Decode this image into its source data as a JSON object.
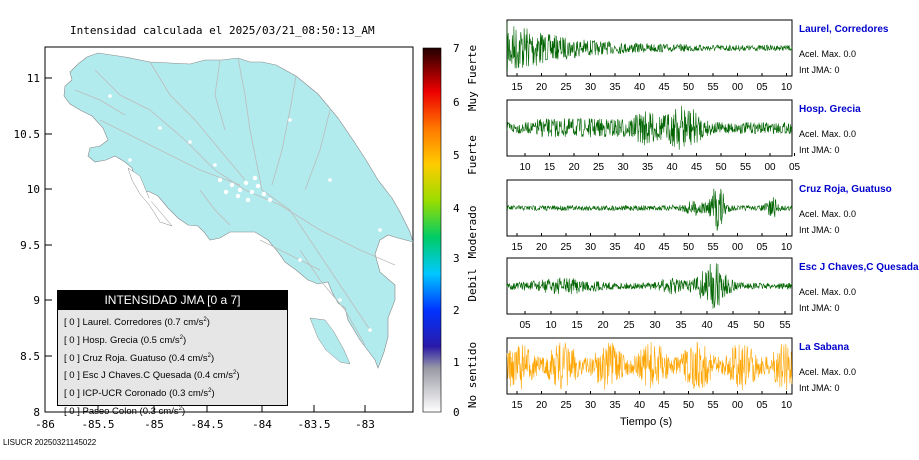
{
  "map": {
    "title": "Intensidad calculada el 2025/03/21_08:50:13_AM",
    "x_ticks": [
      "-86",
      "-85.5",
      "-85",
      "-84.5",
      "-84",
      "-83.5",
      "-83"
    ],
    "y_ticks": [
      "11",
      "10.5",
      "10",
      "9.5",
      "9",
      "8.5",
      "8"
    ],
    "land_color": "#b2ebee",
    "legend": {
      "title": "INTENSIDAD JMA [0 a 7]",
      "items": [
        {
          "bracket": "[ 0 ]",
          "name": "Laurel. Corredores",
          "value": "(0.7 cm/s",
          "exp": "2",
          "close": ")"
        },
        {
          "bracket": "[ 0 ]",
          "name": "Hosp. Grecia",
          "value": "(0.5 cm/s",
          "exp": "2",
          "close": ")"
        },
        {
          "bracket": "[ 0 ]",
          "name": "Cruz Roja. Guatuso",
          "value": "(0.4 cm/s",
          "exp": "2",
          "close": ")"
        },
        {
          "bracket": "[ 0 ]",
          "name": "Esc J Chaves.C Quesada",
          "value": "(0.4 cm/s",
          "exp": "2",
          "close": ")"
        },
        {
          "bracket": "[ 0 ]",
          "name": "ICP-UCR Coronado",
          "value": "(0.3 cm/s",
          "exp": "2",
          "close": ")"
        },
        {
          "bracket": "[ 0 ]",
          "name": "Paseo Colon",
          "value": "(0.3 cm/s",
          "exp": "2",
          "close": ")"
        }
      ]
    },
    "footer": "LISUCR 20250321145022"
  },
  "scale": {
    "numbers": [
      "7",
      "6",
      "5",
      "4",
      "3",
      "2",
      "1",
      "0"
    ],
    "labels": [
      "Muy Fuerte",
      "Fuerte",
      "Moderado",
      "Debil",
      "No sentido"
    ]
  },
  "waveforms": {
    "time_label": "Tiempo (s)",
    "panels": [
      {
        "name": "Laurel, Corredores",
        "acel": "Acel. Max. 0.0",
        "int": "Int JMA: 0",
        "color": "#006400",
        "ticks": [
          "15",
          "20",
          "25",
          "30",
          "35",
          "40",
          "45",
          "50",
          "55",
          "00",
          "05",
          "10"
        ]
      },
      {
        "name": "Hosp. Grecia",
        "acel": "Acel. Max. 0.0",
        "int": "Int JMA: 0",
        "color": "#006400",
        "ticks": [
          "10",
          "15",
          "20",
          "25",
          "30",
          "35",
          "40",
          "45",
          "50",
          "55",
          "00",
          "05"
        ]
      },
      {
        "name": "Cruz Roja, Guatuso",
        "acel": "Acel. Max. 0.0",
        "int": "Int JMA: 0",
        "color": "#006400",
        "ticks": [
          "15",
          "20",
          "25",
          "30",
          "35",
          "40",
          "45",
          "50",
          "55",
          "00",
          "05",
          "10"
        ]
      },
      {
        "name": "Esc J Chaves,C Quesada",
        "acel": "Acel. Max. 0.0",
        "int": "Int JMA: 0",
        "color": "#006400",
        "ticks": [
          "05",
          "10",
          "15",
          "20",
          "25",
          "30",
          "35",
          "40",
          "45",
          "50",
          "55"
        ]
      },
      {
        "name": "La Sabana",
        "acel": "Acel. Max. 0.0",
        "int": "Int JMA: 0",
        "color": "#ffa500",
        "ticks": [
          "15",
          "20",
          "25",
          "30",
          "35",
          "40",
          "45",
          "50",
          "55",
          "00",
          "05",
          "10"
        ]
      }
    ]
  }
}
